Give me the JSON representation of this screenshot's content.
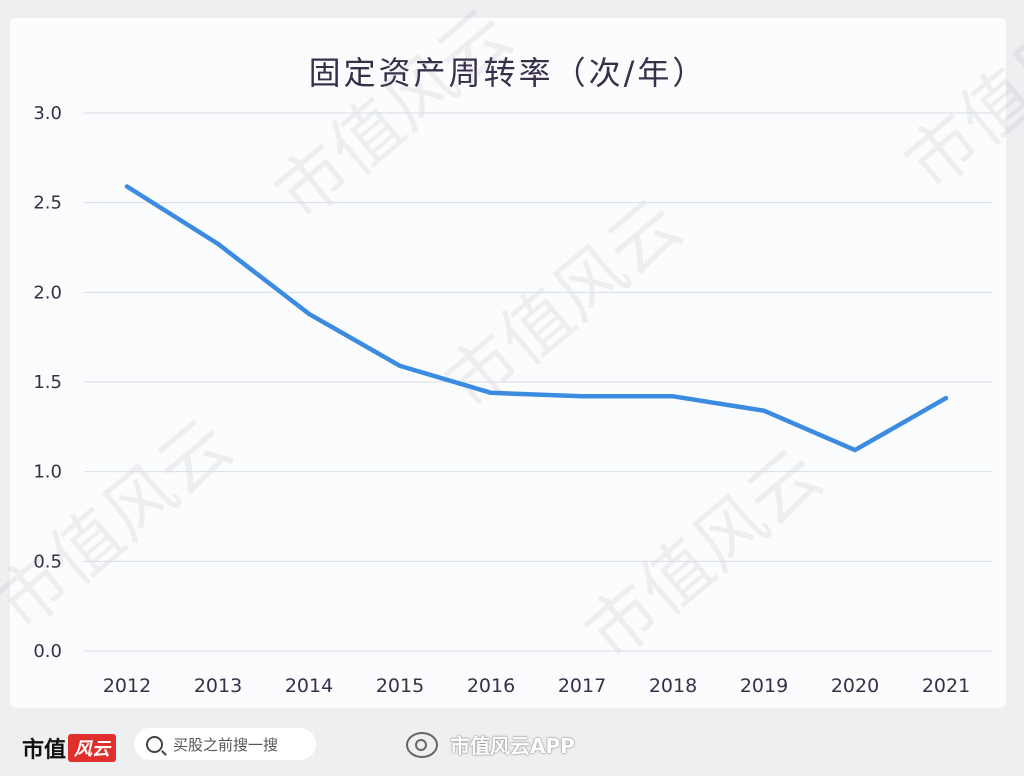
{
  "chart_data": {
    "type": "line",
    "title": "固定资产周转率（次/年）",
    "xlabel": "",
    "ylabel": "",
    "categories": [
      "2012",
      "2013",
      "2014",
      "2015",
      "2016",
      "2017",
      "2018",
      "2019",
      "2020",
      "2021"
    ],
    "series": [
      {
        "name": "固定资产周转率",
        "values": [
          2.59,
          2.27,
          1.88,
          1.59,
          1.44,
          1.42,
          1.42,
          1.34,
          1.12,
          1.41
        ],
        "color": "#3b8be0"
      }
    ],
    "yticks": [
      "0.0",
      "0.5",
      "1.0",
      "1.5",
      "2.0",
      "2.5",
      "3.0"
    ],
    "ylim": [
      0,
      3.0
    ],
    "grid": true,
    "legend": "none"
  },
  "footer": {
    "brand_text": "市值",
    "brand_badge": "风云",
    "search_placeholder": "买股之前搜一搜",
    "weibo_text": "市值风云APP"
  },
  "watermark": "市值风云"
}
